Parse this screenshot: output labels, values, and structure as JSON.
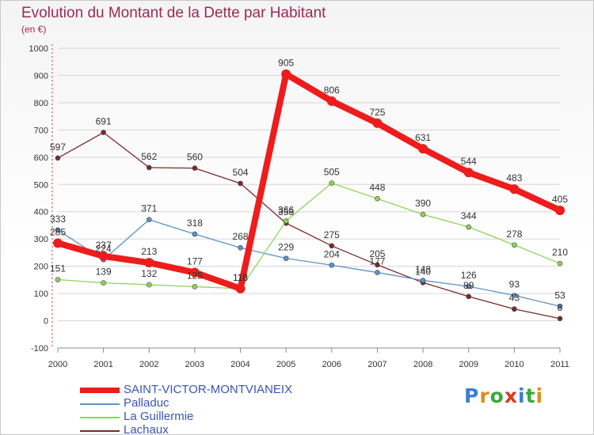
{
  "header": {
    "title": "Evolution du Montant de la Dette par Habitant",
    "subtitle": "(en €)"
  },
  "brand": {
    "text": "Proxiti",
    "colors": [
      "#3a7fd0",
      "#e08a1e",
      "#3aa83a",
      "#e0371e",
      "#3a7fd0",
      "#3aa83a",
      "#e08a1e"
    ]
  },
  "chart_data": {
    "type": "line",
    "title": "Evolution du Montant de la Dette par Habitant",
    "subtitle": "(en €)",
    "x": [
      "2000",
      "2001",
      "2002",
      "2003",
      "2004",
      "2005",
      "2006",
      "2007",
      "2008",
      "2009",
      "2010",
      "2011"
    ],
    "y_ticks": [
      "-100",
      "0",
      "100",
      "200",
      "300",
      "400",
      "500",
      "600",
      "700",
      "800",
      "900",
      "1000"
    ],
    "ylim": [
      -100,
      1000
    ],
    "grid": true,
    "legend_position": "bottom",
    "series": [
      {
        "name": "SAINT-VICTOR-MONTVIANEIX",
        "color": "#ee1c1c",
        "values": [
          285,
          237,
          213,
          177,
          118,
          905,
          806,
          725,
          631,
          544,
          483,
          405
        ]
      },
      {
        "name": "Palladuc",
        "color": "#5b93c9",
        "values": [
          333,
          224,
          371,
          318,
          268,
          229,
          204,
          177,
          148,
          126,
          93,
          53
        ]
      },
      {
        "name": "La Guillermie",
        "color": "#8fd45a",
        "values": [
          151,
          139,
          132,
          125,
          118,
          366,
          505,
          448,
          390,
          344,
          278,
          210
        ]
      },
      {
        "name": "Lachaux",
        "color": "#7a2a2a",
        "values": [
          597,
          691,
          562,
          560,
          504,
          358,
          275,
          205,
          140,
          89,
          43,
          8
        ]
      }
    ]
  }
}
